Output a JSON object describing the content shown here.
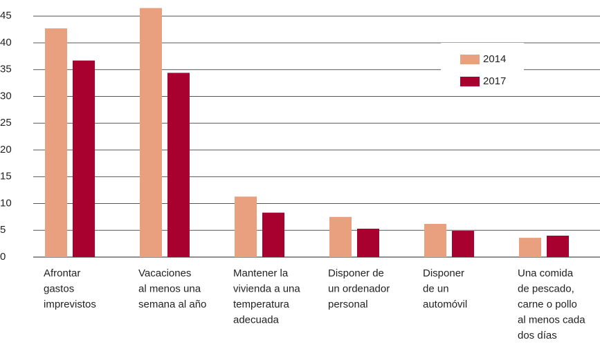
{
  "chart_data": {
    "type": "bar",
    "categories": [
      [
        "Afrontar",
        "gastos",
        "imprevistos"
      ],
      [
        "Vacaciones",
        "al menos una",
        "semana al año"
      ],
      [
        "Mantener la",
        "vivienda a una",
        "temperatura",
        "adecuada"
      ],
      [
        "Disponer de",
        "un ordenador",
        "personal"
      ],
      [
        "Disponer",
        "de un",
        "automóvil"
      ],
      [
        "Una comida",
        "de pescado,",
        "carne o pollo",
        "al menos cada",
        "dos días"
      ]
    ],
    "series": [
      {
        "name": "2014",
        "color": "#e9a07f",
        "values": [
          42.7,
          46.5,
          11.3,
          7.5,
          6.2,
          3.6
        ]
      },
      {
        "name": "2017",
        "color": "#a8002f",
        "values": [
          36.7,
          34.4,
          8.3,
          5.3,
          4.9,
          4.0
        ]
      }
    ],
    "ylim": [
      0,
      48
    ],
    "yticks": [
      0,
      5,
      10,
      15,
      20,
      25,
      30,
      35,
      40,
      45
    ],
    "grid": true,
    "legend": "upper right"
  }
}
